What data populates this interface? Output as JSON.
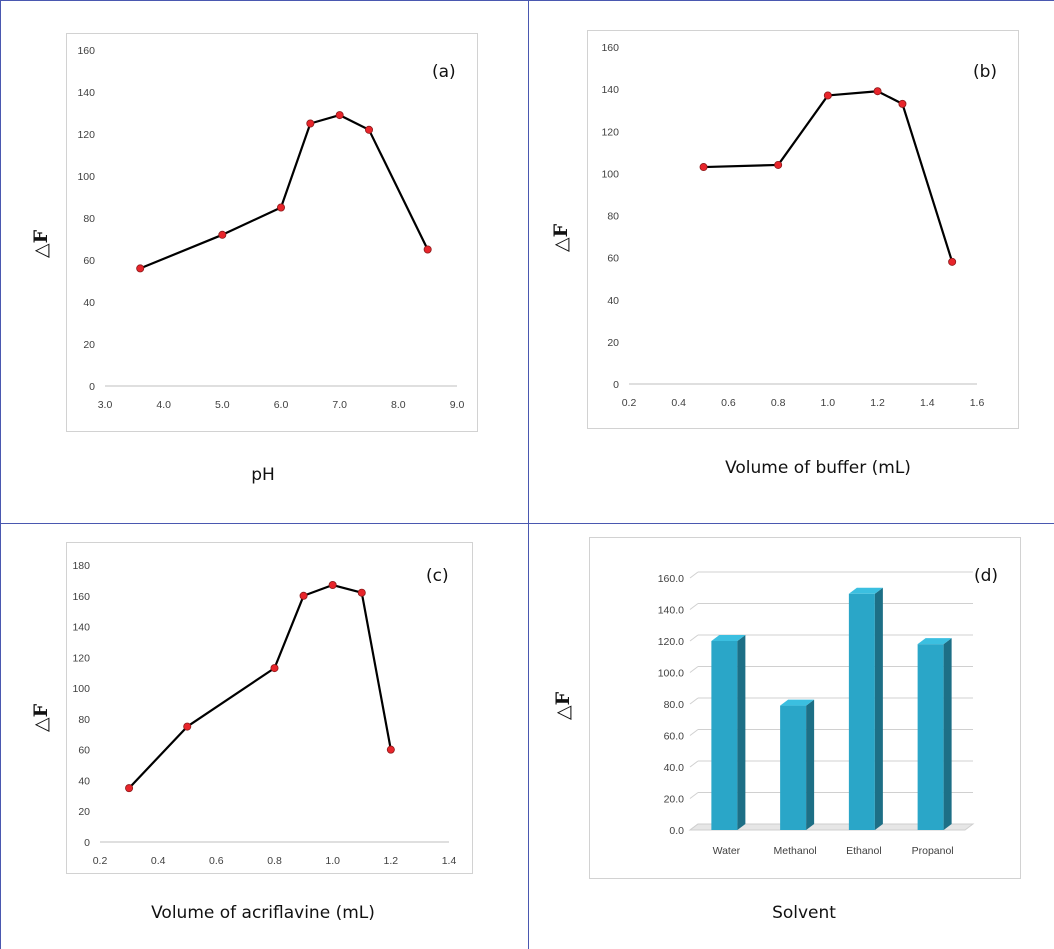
{
  "panels": {
    "a": {
      "label": "(a)",
      "xtitle": "pH",
      "ytitle": "△F"
    },
    "b": {
      "label": "(b)",
      "xtitle": "Volume of buffer (mL)",
      "ytitle": "△F"
    },
    "c": {
      "label": "(c)",
      "xtitle": "Volume of acriflavine (mL)",
      "ytitle": "△F"
    },
    "d": {
      "label": "(d)",
      "xtitle": "Solvent",
      "ytitle": "△F"
    }
  },
  "colors": {
    "line": "#000000",
    "marker_fill": "#e8252b",
    "marker_stroke": "#8b1a1a",
    "bar_front": "#2aa6c8",
    "bar_side": "#1d6f86",
    "bar_top": "#3bbfe0",
    "divider": "#4a58b0"
  },
  "chart_data": [
    {
      "type": "line",
      "xlabel": "pH",
      "ylabel": "△F",
      "x": [
        3.6,
        5.0,
        6.0,
        6.5,
        7.0,
        7.5,
        8.5
      ],
      "y": [
        56,
        72,
        85,
        125,
        129,
        122,
        65
      ],
      "xlim": [
        3.0,
        9.0
      ],
      "ylim": [
        0,
        160
      ],
      "xticks": [
        "3.0",
        "4.0",
        "5.0",
        "6.0",
        "7.0",
        "8.0",
        "9.0"
      ],
      "yticks": [
        "0",
        "20",
        "40",
        "60",
        "80",
        "100",
        "120",
        "140",
        "160"
      ],
      "annotation": "(a)"
    },
    {
      "type": "line",
      "xlabel": "Volume of buffer (mL)",
      "ylabel": "△F",
      "x": [
        0.5,
        0.8,
        1.0,
        1.2,
        1.3,
        1.5
      ],
      "y": [
        103,
        104,
        137,
        139,
        133,
        58
      ],
      "xlim": [
        0.2,
        1.6
      ],
      "ylim": [
        0,
        160
      ],
      "xticks": [
        "0.2",
        "0.4",
        "0.6",
        "0.8",
        "1.0",
        "1.2",
        "1.4",
        "1.6"
      ],
      "yticks": [
        "0",
        "20",
        "40",
        "60",
        "80",
        "100",
        "120",
        "140",
        "160"
      ],
      "annotation": "(b)"
    },
    {
      "type": "line",
      "xlabel": "Volume of acriflavine (mL)",
      "ylabel": "△F",
      "x": [
        0.3,
        0.5,
        0.8,
        0.9,
        1.0,
        1.1,
        1.2
      ],
      "y": [
        35,
        75,
        113,
        160,
        167,
        162,
        60
      ],
      "xlim": [
        0.2,
        1.4
      ],
      "ylim": [
        0,
        180
      ],
      "xticks": [
        "0.2",
        "0.4",
        "0.6",
        "0.8",
        "1.0",
        "1.2",
        "1.4"
      ],
      "yticks": [
        "0",
        "20",
        "40",
        "60",
        "80",
        "100",
        "120",
        "140",
        "160",
        "180"
      ],
      "annotation": "(c)"
    },
    {
      "type": "bar",
      "xlabel": "Solvent",
      "ylabel": "△F",
      "categories": [
        "Water",
        "Methanol",
        "Ethanol",
        "Propanol"
      ],
      "values": [
        120,
        79,
        150,
        118
      ],
      "ylim": [
        0,
        160
      ],
      "yticks": [
        "0.0",
        "20.0",
        "40.0",
        "60.0",
        "80.0",
        "100.0",
        "120.0",
        "140.0",
        "160.0"
      ],
      "annotation": "(d)"
    }
  ]
}
